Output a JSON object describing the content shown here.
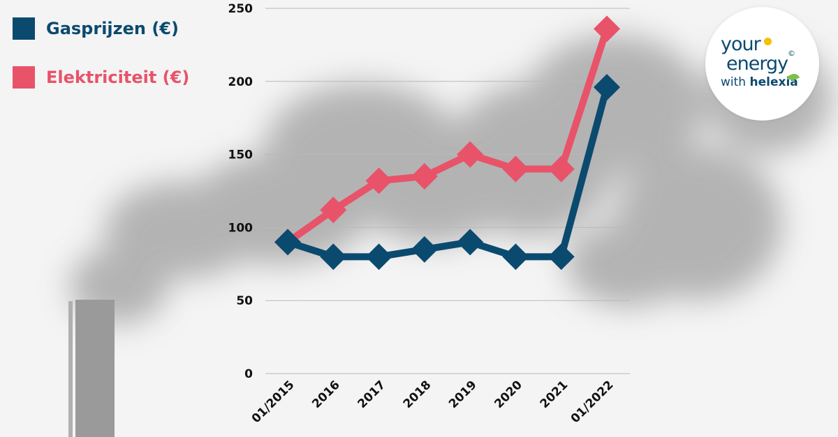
{
  "legend": {
    "gas": "Gasprijzen (€)",
    "electricity": "Elektriciteit (€)"
  },
  "logo": {
    "line1": "your",
    "line2": "energy",
    "line3_prefix": "with ",
    "line3_brand": "helexia",
    "copyright": "©"
  },
  "colors": {
    "gas": "#0b4a6f",
    "electricity": "#e8536a",
    "grid": "#b9b9b9",
    "background": "#f4f4f4",
    "smoke": "#a8a8a8"
  },
  "chart_data": {
    "type": "line",
    "categories": [
      "01/2015",
      "2016",
      "2017",
      "2018",
      "2019",
      "2020",
      "2021",
      "01/2022"
    ],
    "series": [
      {
        "name": "Gasprijzen (€)",
        "values": [
          90,
          80,
          80,
          85,
          90,
          80,
          80,
          196
        ],
        "marker": "diamond"
      },
      {
        "name": "Elektriciteit (€)",
        "values": [
          90,
          112,
          132,
          135,
          150,
          140,
          140,
          236
        ],
        "marker": "diamond"
      }
    ],
    "ylim": [
      0,
      250
    ],
    "yticks": [
      0,
      50,
      100,
      150,
      200,
      250
    ],
    "grid": true,
    "legend_position": "top-left",
    "title": "",
    "xlabel": "",
    "ylabel": ""
  }
}
